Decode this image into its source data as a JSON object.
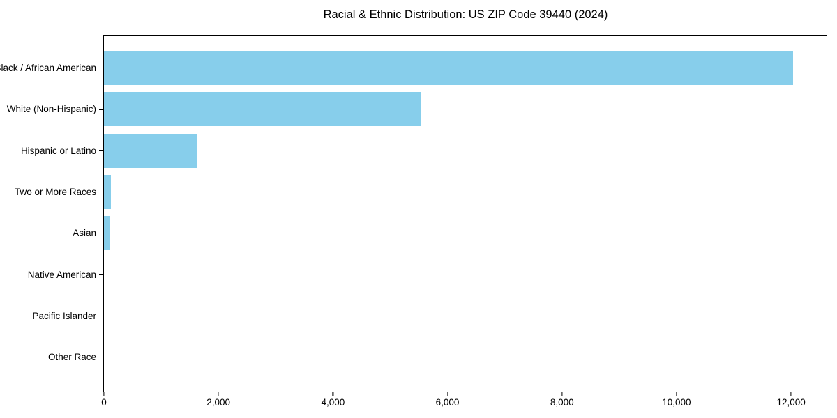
{
  "chart_data": {
    "type": "bar",
    "orientation": "horizontal",
    "title": "Racial & Ethnic Distribution: US ZIP Code 39440 (2024)",
    "categories": [
      "Black / African American",
      "White (Non-Hispanic)",
      "Hispanic or Latino",
      "Two or More Races",
      "Asian",
      "Native American",
      "Pacific Islander",
      "Other Race"
    ],
    "values": [
      12030,
      5540,
      1615,
      120,
      100,
      0,
      0,
      0
    ],
    "xlabel": "",
    "ylabel": "",
    "xlim": [
      0,
      12620
    ],
    "x_ticks": [
      0,
      2000,
      4000,
      6000,
      8000,
      10000,
      12000
    ],
    "x_tick_labels": [
      "0",
      "2,000",
      "4,000",
      "6,000",
      "8,000",
      "10,000",
      "12,000"
    ],
    "bar_color": "#87CEEB",
    "axis_color": "#000000",
    "text_color": "#000000",
    "background_color": "#ffffff",
    "grid": false,
    "legend": null
  }
}
